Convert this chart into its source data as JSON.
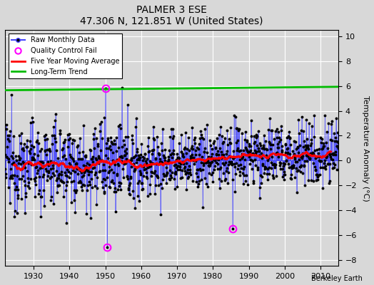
{
  "title": "PALMER 3 ESE",
  "subtitle": "47.306 N, 121.851 W (United States)",
  "ylabel": "Temperature Anomaly (°C)",
  "attribution": "Berkeley Earth",
  "year_start": 1922,
  "year_end": 2015.5,
  "ylim": [
    -8.5,
    10.5
  ],
  "yticks": [
    -8,
    -6,
    -4,
    -2,
    0,
    2,
    4,
    6,
    8,
    10
  ],
  "xticks": [
    1930,
    1940,
    1950,
    1960,
    1970,
    1980,
    1990,
    2000,
    2010
  ],
  "xlim_left": 1922,
  "xlim_right": 2015,
  "raw_color": "#4444ff",
  "raw_marker_color": "#000000",
  "qc_fail_color": "#ff00ff",
  "moving_avg_color": "#ff0000",
  "trend_color": "#00bb00",
  "background_color": "#d8d8d8",
  "plot_bg_color": "#d8d8d8",
  "grid_color": "#ffffff",
  "seed": 12345,
  "qc_years": [
    1950.0,
    1950.5,
    1985.5
  ],
  "qc_values": [
    5.8,
    -7.0,
    -5.5
  ]
}
